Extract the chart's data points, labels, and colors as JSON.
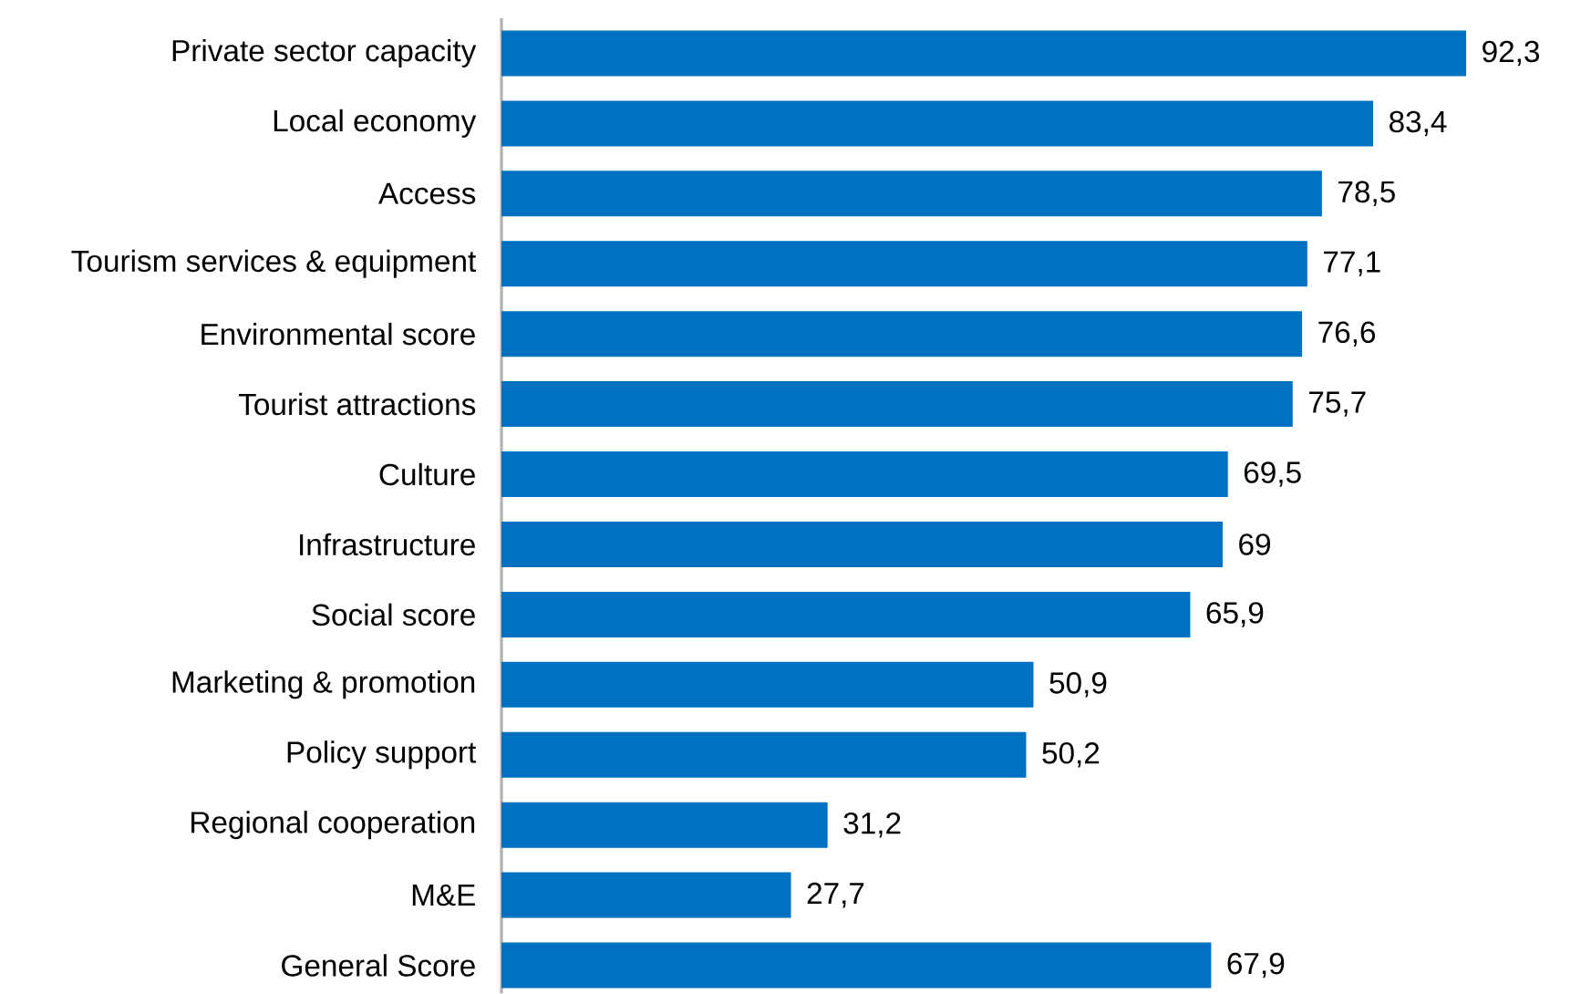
{
  "chart_data": {
    "type": "bar",
    "orientation": "horizontal",
    "color": "#0070c0",
    "categories": [
      "Private sector capacity",
      "Local economy",
      "Access",
      "Tourism services & equipment",
      "Environmental score",
      "Tourist attractions",
      "Culture",
      "Infrastructure",
      "Social score",
      "Marketing & promotion",
      "Policy support",
      "Regional cooperation",
      "M&E",
      "General Score"
    ],
    "values": [
      92.3,
      83.4,
      78.5,
      77.1,
      76.6,
      75.7,
      69.5,
      69,
      65.9,
      50.9,
      50.2,
      31.2,
      27.7,
      67.9
    ],
    "value_labels": [
      "92,3",
      "83,4",
      "78,5",
      "77,1",
      "76,6",
      "75,7",
      "69,5",
      "69",
      "65,9",
      "50,9",
      "50,2",
      "31,2",
      "27,7",
      "67,9"
    ]
  }
}
